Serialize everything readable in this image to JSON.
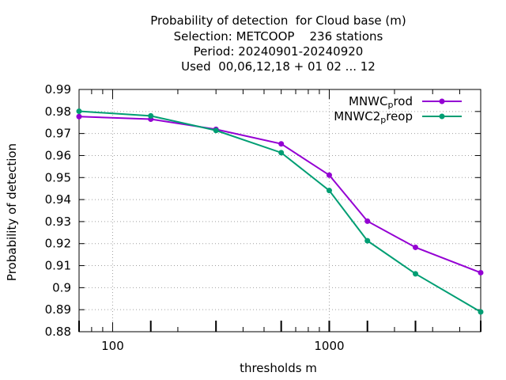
{
  "chart_data": {
    "type": "line",
    "title_lines": [
      "Probability of detection  for Cloud base (m)",
      "Selection: METCOOP    236 stations",
      "Period: 20240901-20240920",
      "Used  00,06,12,18 + 01 02 ... 12"
    ],
    "xlabel": "thresholds m",
    "ylabel": "Probability of detection",
    "x_scale": "log",
    "xlim": [
      70,
      5000
    ],
    "ylim": [
      0.88,
      0.99
    ],
    "x_ticks": [
      100,
      1000
    ],
    "x_tick_labels": [
      "100",
      "1000"
    ],
    "y_ticks": [
      0.88,
      0.89,
      0.9,
      0.91,
      0.92,
      0.93,
      0.94,
      0.95,
      0.96,
      0.97,
      0.98,
      0.99
    ],
    "y_tick_labels": [
      "0.88",
      "0.89",
      "0.9",
      "0.91",
      "0.92",
      "0.93",
      "0.94",
      "0.95",
      "0.96",
      "0.97",
      "0.98",
      "0.99"
    ],
    "grid": true,
    "legend_position": "top-right",
    "x": [
      70,
      150,
      300,
      600,
      1000,
      1500,
      2500,
      5000
    ],
    "series": [
      {
        "name": "MNWC_prod",
        "legend_main": "MNWC",
        "legend_sub": "p",
        "legend_rest": "rod",
        "color": "#9400d3",
        "values": [
          0.9777,
          0.9765,
          0.9719,
          0.9653,
          0.9511,
          0.9302,
          0.9183,
          0.9068
        ]
      },
      {
        "name": "MNWC2_preop",
        "legend_main": "MNWC2",
        "legend_sub": "p",
        "legend_rest": "reop",
        "color": "#009e73",
        "values": [
          0.9801,
          0.978,
          0.9714,
          0.9613,
          0.9441,
          0.9213,
          0.9063,
          0.889
        ]
      }
    ]
  }
}
